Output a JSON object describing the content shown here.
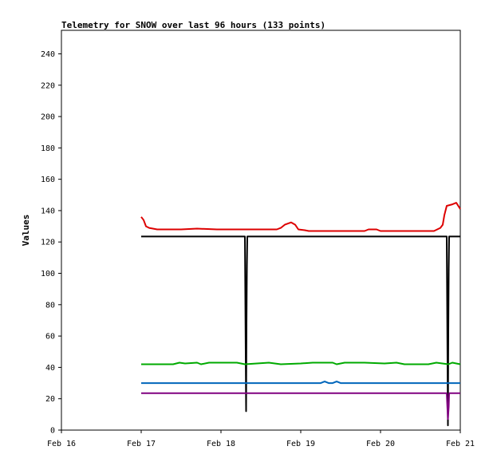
{
  "chart_data": {
    "type": "line",
    "title": "Telemetry for SNOW over last 96 hours (133 points)",
    "xlabel": "",
    "ylabel": "Values",
    "xlim": [
      0,
      5
    ],
    "ylim": [
      0,
      255
    ],
    "x_unit": "days since Feb 16",
    "x_ticks": [
      {
        "value": 0,
        "label": "Feb 16"
      },
      {
        "value": 1,
        "label": "Feb 17"
      },
      {
        "value": 2,
        "label": "Feb 18"
      },
      {
        "value": 3,
        "label": "Feb 19"
      },
      {
        "value": 4,
        "label": "Feb 20"
      },
      {
        "value": 5,
        "label": "Feb 21"
      }
    ],
    "y_ticks": [
      0,
      20,
      40,
      60,
      80,
      100,
      120,
      140,
      160,
      180,
      200,
      220,
      240
    ],
    "grid": false,
    "legend": "none",
    "series": [
      {
        "color": "#dd0000",
        "points": [
          [
            1.0,
            136
          ],
          [
            1.03,
            134
          ],
          [
            1.06,
            130
          ],
          [
            1.1,
            129
          ],
          [
            1.2,
            128
          ],
          [
            1.5,
            128
          ],
          [
            1.7,
            128.5
          ],
          [
            1.95,
            128
          ],
          [
            2.3,
            128
          ],
          [
            2.7,
            128
          ],
          [
            2.75,
            129
          ],
          [
            2.8,
            131
          ],
          [
            2.88,
            132.5
          ],
          [
            2.93,
            131
          ],
          [
            2.97,
            128
          ],
          [
            3.05,
            127.5
          ],
          [
            3.1,
            127
          ],
          [
            3.5,
            127
          ],
          [
            3.8,
            127
          ],
          [
            3.85,
            128
          ],
          [
            3.95,
            128
          ],
          [
            4.0,
            127
          ],
          [
            4.5,
            127
          ],
          [
            4.67,
            127
          ],
          [
            4.75,
            129
          ],
          [
            4.78,
            131
          ],
          [
            4.8,
            137
          ],
          [
            4.83,
            143
          ],
          [
            4.9,
            144
          ],
          [
            4.95,
            145
          ],
          [
            5.0,
            141
          ]
        ]
      },
      {
        "color": "#000000",
        "points": [
          [
            1.0,
            123.5
          ],
          [
            2.3,
            123.5
          ],
          [
            2.315,
            12
          ],
          [
            2.32,
            68
          ],
          [
            2.325,
            105
          ],
          [
            2.33,
            123.5
          ],
          [
            4.83,
            123.5
          ],
          [
            4.845,
            3
          ],
          [
            4.85,
            63
          ],
          [
            4.855,
            103
          ],
          [
            4.86,
            123.5
          ],
          [
            5.0,
            123.5
          ]
        ]
      },
      {
        "color": "#00aa00",
        "points": [
          [
            1.0,
            42
          ],
          [
            1.4,
            42
          ],
          [
            1.48,
            43
          ],
          [
            1.55,
            42.5
          ],
          [
            1.7,
            43
          ],
          [
            1.75,
            42
          ],
          [
            1.85,
            43
          ],
          [
            2.0,
            43
          ],
          [
            2.2,
            43
          ],
          [
            2.3,
            42
          ],
          [
            2.45,
            42.5
          ],
          [
            2.6,
            43
          ],
          [
            2.75,
            42
          ],
          [
            3.0,
            42.5
          ],
          [
            3.15,
            43
          ],
          [
            3.4,
            43
          ],
          [
            3.45,
            42
          ],
          [
            3.55,
            43
          ],
          [
            3.8,
            43
          ],
          [
            4.05,
            42.5
          ],
          [
            4.2,
            43
          ],
          [
            4.3,
            42
          ],
          [
            4.6,
            42
          ],
          [
            4.7,
            43
          ],
          [
            4.85,
            42
          ],
          [
            4.9,
            43
          ],
          [
            5.0,
            42
          ]
        ]
      },
      {
        "color": "#0066bb",
        "points": [
          [
            1.0,
            30
          ],
          [
            3.25,
            30
          ],
          [
            3.3,
            31
          ],
          [
            3.35,
            30
          ],
          [
            3.4,
            30
          ],
          [
            3.45,
            31
          ],
          [
            3.5,
            30
          ],
          [
            4.85,
            30
          ],
          [
            4.86,
            30
          ],
          [
            5.0,
            30
          ]
        ]
      },
      {
        "color": "#800080",
        "points": [
          [
            1.0,
            23.5
          ],
          [
            4.83,
            23.5
          ],
          [
            4.845,
            7
          ],
          [
            4.855,
            15
          ],
          [
            4.86,
            23.5
          ],
          [
            5.0,
            23.5
          ]
        ]
      }
    ]
  }
}
